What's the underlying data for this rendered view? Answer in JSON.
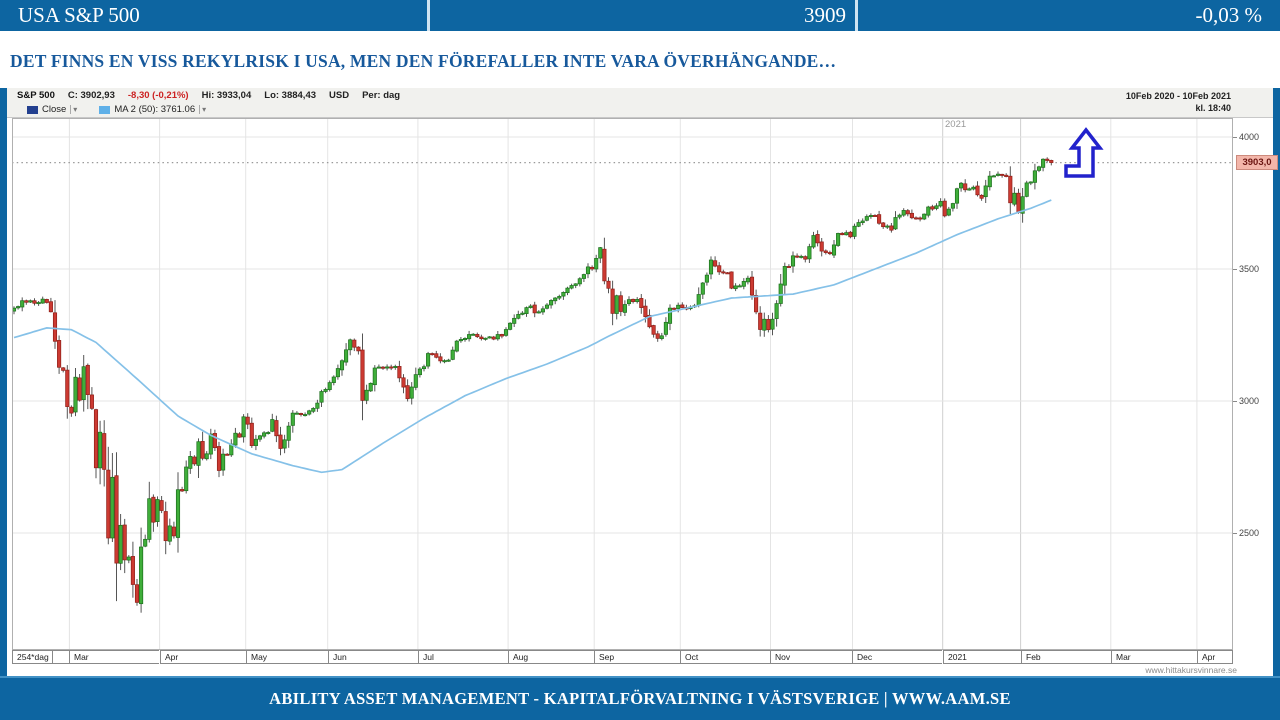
{
  "header_bar": {
    "title": "USA  S&P 500",
    "value": "3909",
    "change_pct": "-0,03 %"
  },
  "subtitle": "DET FINNS EN VISS REKYLRISK I USA, MEN DEN FÖREFALLER INTE VARA ÖVERHÄNGANDE…",
  "chart": {
    "info": {
      "symbol": "S&P 500",
      "close_label": "C: 3902,93",
      "change_label": "-8,30 (-0,21%)",
      "high_label": "Hi: 3933,04",
      "low_label": "Lo: 3884,43",
      "currency": "USD",
      "period_label": "Per: dag"
    },
    "date_range": "10Feb 2020 - 10Feb 2021",
    "time_label": "kl. 18:40",
    "legend": {
      "close_label": "Close",
      "ma_label": "MA 2 (50): 3761.06",
      "dropdown_glyph": "▾"
    },
    "axis_left_box": "254*dag",
    "year_top_label": "2021",
    "price_tag": "3903,0",
    "watermark": "www.hittakursvinnare.se"
  },
  "footer": "ABILITY ASSET MANAGEMENT -  KAPITALFÖRVALTNING I VÄSTSVERIGE  |  WWW.AAM.SE",
  "colors": {
    "band_blue": "#0d65a1",
    "subtitle_blue": "#17599c",
    "candle_up_fill": "#3fae3a",
    "candle_up_edge": "#1c6e1c",
    "candle_down_fill": "#cc3a32",
    "candle_down_edge": "#8f1f18",
    "wick": "#555555",
    "ma_line": "#85c1e8",
    "grid": "#e4e4e4",
    "grid_strong": "#cfcfcf",
    "dotted_price_line": "#999999",
    "annotation_arrow": "#2222cc",
    "price_tag_bg": "#f3b6aa",
    "price_tag_text": "#6b1410",
    "negative_red": "#cc2222"
  },
  "chart_data": {
    "type": "candlestick+line",
    "title": "S&P 500 daily, 10 Feb 2020 - 10 Feb 2021",
    "y_ticks": [
      4000,
      3500,
      3000,
      2500
    ],
    "y_axis_side": "right",
    "grid": true,
    "current_price": 3903.0,
    "last": {
      "close": 3902.93,
      "change": -8.3,
      "change_pct": -0.21,
      "high": 3933.04,
      "low": 3884.43,
      "currency": "USD",
      "period": "dag"
    },
    "ma50_last": 3761.06,
    "trading_days": 254,
    "months": [
      {
        "label": "Mar",
        "day": 14
      },
      {
        "label": "Apr",
        "day": 36
      },
      {
        "label": "May",
        "day": 57
      },
      {
        "label": "Jun",
        "day": 77
      },
      {
        "label": "Jul",
        "day": 99
      },
      {
        "label": "Aug",
        "day": 121
      },
      {
        "label": "Sep",
        "day": 142
      },
      {
        "label": "Oct",
        "day": 163
      },
      {
        "label": "Nov",
        "day": 185
      },
      {
        "label": "Dec",
        "day": 205
      },
      {
        "label": "2021",
        "day": 227
      },
      {
        "label": "Feb",
        "day": 246
      },
      {
        "label": "Mar",
        "day": 268
      },
      {
        "label": "Apr",
        "day": 289
      }
    ],
    "close_keypoints": [
      [
        0,
        3352
      ],
      [
        1,
        3358
      ],
      [
        2,
        3380
      ],
      [
        3,
        3374
      ],
      [
        4,
        3380
      ],
      [
        5,
        3370
      ],
      [
        6,
        3373
      ],
      [
        7,
        3386
      ],
      [
        8,
        3373
      ],
      [
        9,
        3338
      ],
      [
        10,
        3226
      ],
      [
        11,
        3128
      ],
      [
        12,
        3116
      ],
      [
        13,
        2979
      ],
      [
        14,
        2954
      ],
      [
        15,
        3090
      ],
      [
        16,
        3003
      ],
      [
        17,
        3130
      ],
      [
        18,
        3024
      ],
      [
        19,
        2972
      ],
      [
        20,
        2747
      ],
      [
        21,
        2882
      ],
      [
        22,
        2741
      ],
      [
        23,
        2481
      ],
      [
        24,
        2711
      ],
      [
        25,
        2386
      ],
      [
        26,
        2529
      ],
      [
        27,
        2398
      ],
      [
        28,
        2409
      ],
      [
        29,
        2305
      ],
      [
        30,
        2237
      ],
      [
        31,
        2447
      ],
      [
        32,
        2476
      ],
      [
        33,
        2630
      ],
      [
        34,
        2541
      ],
      [
        35,
        2627
      ],
      [
        36,
        2585
      ],
      [
        37,
        2471
      ],
      [
        38,
        2527
      ],
      [
        39,
        2489
      ],
      [
        40,
        2664
      ],
      [
        41,
        2659
      ],
      [
        42,
        2750
      ],
      [
        43,
        2790
      ],
      [
        44,
        2762
      ],
      [
        45,
        2846
      ],
      [
        46,
        2783
      ],
      [
        47,
        2800
      ],
      [
        48,
        2875
      ],
      [
        49,
        2823
      ],
      [
        50,
        2737
      ],
      [
        51,
        2799
      ],
      [
        52,
        2798
      ],
      [
        53,
        2837
      ],
      [
        54,
        2878
      ],
      [
        55,
        2863
      ],
      [
        56,
        2940
      ],
      [
        57,
        2912
      ],
      [
        58,
        2831
      ],
      [
        60,
        2868
      ],
      [
        62,
        2881
      ],
      [
        63,
        2930
      ],
      [
        65,
        2820
      ],
      [
        66,
        2853
      ],
      [
        68,
        2954
      ],
      [
        71,
        2949
      ],
      [
        74,
        2992
      ],
      [
        75,
        3036
      ],
      [
        76,
        3044
      ],
      [
        79,
        3123
      ],
      [
        81,
        3194
      ],
      [
        82,
        3232
      ],
      [
        84,
        3190
      ],
      [
        85,
        3002
      ],
      [
        86,
        3041
      ],
      [
        87,
        3067
      ],
      [
        88,
        3125
      ],
      [
        93,
        3131
      ],
      [
        96,
        3009
      ],
      [
        97,
        3053
      ],
      [
        98,
        3100
      ],
      [
        100,
        3130
      ],
      [
        101,
        3180
      ],
      [
        104,
        3152
      ],
      [
        106,
        3155
      ],
      [
        108,
        3227
      ],
      [
        111,
        3252
      ],
      [
        114,
        3236
      ],
      [
        119,
        3246
      ],
      [
        120,
        3271
      ],
      [
        123,
        3328
      ],
      [
        126,
        3360
      ],
      [
        127,
        3334
      ],
      [
        132,
        3390
      ],
      [
        137,
        3444
      ],
      [
        140,
        3508
      ],
      [
        141,
        3500
      ],
      [
        143,
        3581
      ],
      [
        144,
        3455
      ],
      [
        145,
        3427
      ],
      [
        146,
        3332
      ],
      [
        147,
        3399
      ],
      [
        148,
        3339
      ],
      [
        150,
        3384
      ],
      [
        152,
        3385
      ],
      [
        154,
        3319
      ],
      [
        155,
        3281
      ],
      [
        157,
        3237
      ],
      [
        158,
        3247
      ],
      [
        159,
        3298
      ],
      [
        160,
        3352
      ],
      [
        162,
        3363
      ],
      [
        164,
        3348
      ],
      [
        166,
        3361
      ],
      [
        168,
        3447
      ],
      [
        169,
        3477
      ],
      [
        170,
        3534
      ],
      [
        171,
        3511
      ],
      [
        172,
        3489
      ],
      [
        174,
        3484
      ],
      [
        175,
        3427
      ],
      [
        178,
        3453
      ],
      [
        179,
        3465
      ],
      [
        180,
        3401
      ],
      [
        182,
        3271
      ],
      [
        183,
        3310
      ],
      [
        184,
        3270
      ],
      [
        185,
        3310
      ],
      [
        186,
        3369
      ],
      [
        187,
        3443
      ],
      [
        188,
        3510
      ],
      [
        189,
        3509
      ],
      [
        190,
        3550
      ],
      [
        191,
        3545
      ],
      [
        193,
        3537
      ],
      [
        194,
        3585
      ],
      [
        195,
        3627
      ],
      [
        197,
        3568
      ],
      [
        199,
        3558
      ],
      [
        201,
        3635
      ],
      [
        202,
        3630
      ],
      [
        203,
        3638
      ],
      [
        204,
        3622
      ],
      [
        205,
        3662
      ],
      [
        208,
        3699
      ],
      [
        210,
        3702
      ],
      [
        211,
        3673
      ],
      [
        213,
        3663
      ],
      [
        214,
        3647
      ],
      [
        215,
        3695
      ],
      [
        217,
        3722
      ],
      [
        218,
        3709
      ],
      [
        219,
        3694
      ],
      [
        221,
        3690
      ],
      [
        223,
        3735
      ],
      [
        224,
        3727
      ],
      [
        226,
        3756
      ],
      [
        227,
        3701
      ],
      [
        228,
        3727
      ],
      [
        229,
        3748
      ],
      [
        230,
        3804
      ],
      [
        231,
        3825
      ],
      [
        232,
        3800
      ],
      [
        234,
        3810
      ],
      [
        236,
        3768
      ],
      [
        238,
        3852
      ],
      [
        239,
        3853
      ],
      [
        241,
        3855
      ],
      [
        242,
        3850
      ],
      [
        243,
        3751
      ],
      [
        244,
        3787
      ],
      [
        245,
        3714
      ],
      [
        246,
        3774
      ],
      [
        247,
        3826
      ],
      [
        248,
        3830
      ],
      [
        249,
        3872
      ],
      [
        250,
        3887
      ],
      [
        251,
        3916
      ],
      [
        252,
        3911
      ],
      [
        253,
        3903
      ]
    ],
    "ma50_keypoints": [
      [
        0,
        3240
      ],
      [
        8,
        3277
      ],
      [
        14,
        3270
      ],
      [
        20,
        3222
      ],
      [
        30,
        3084
      ],
      [
        40,
        2943
      ],
      [
        48,
        2870
      ],
      [
        58,
        2800
      ],
      [
        68,
        2755
      ],
      [
        75,
        2730
      ],
      [
        80,
        2740
      ],
      [
        90,
        2840
      ],
      [
        100,
        2935
      ],
      [
        110,
        3020
      ],
      [
        120,
        3085
      ],
      [
        130,
        3140
      ],
      [
        140,
        3205
      ],
      [
        145,
        3245
      ],
      [
        155,
        3320
      ],
      [
        165,
        3355
      ],
      [
        175,
        3390
      ],
      [
        185,
        3400
      ],
      [
        190,
        3405
      ],
      [
        200,
        3440
      ],
      [
        210,
        3500
      ],
      [
        220,
        3560
      ],
      [
        230,
        3630
      ],
      [
        240,
        3690
      ],
      [
        248,
        3730
      ],
      [
        253,
        3761
      ]
    ],
    "annotation": {
      "type": "bent-up-arrow",
      "color": "#2222cc",
      "fill": "#ffffff"
    }
  }
}
